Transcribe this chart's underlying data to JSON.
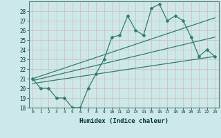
{
  "title": "",
  "xlabel": "Humidex (Indice chaleur)",
  "xlim": [
    -0.5,
    23.5
  ],
  "ylim": [
    18,
    29
  ],
  "xticks": [
    0,
    1,
    2,
    3,
    4,
    5,
    6,
    7,
    8,
    9,
    10,
    11,
    12,
    13,
    14,
    15,
    16,
    17,
    18,
    19,
    20,
    21,
    22,
    23
  ],
  "yticks": [
    18,
    19,
    20,
    21,
    22,
    23,
    24,
    25,
    26,
    27,
    28
  ],
  "background_color": "#cce8e8",
  "grid_color": "#b0d0d0",
  "line_color": "#2e7d6e",
  "zigzag_x": [
    0,
    1,
    2,
    3,
    4,
    5,
    6,
    7,
    8,
    9,
    10,
    11,
    12,
    13,
    14,
    15,
    16,
    17,
    18,
    19,
    20,
    21,
    22,
    23
  ],
  "zigzag_y": [
    21.0,
    20.0,
    20.0,
    19.0,
    19.0,
    18.0,
    18.0,
    20.0,
    21.5,
    23.0,
    25.3,
    25.5,
    27.5,
    26.0,
    25.5,
    28.3,
    28.7,
    27.0,
    27.5,
    27.0,
    25.3,
    23.3,
    24.0,
    23.3
  ],
  "line1_x": [
    0,
    23
  ],
  "line1_y": [
    21.0,
    27.3
  ],
  "line2_x": [
    0,
    23
  ],
  "line2_y": [
    20.8,
    25.3
  ],
  "line3_x": [
    0,
    23
  ],
  "line3_y": [
    20.5,
    23.3
  ]
}
